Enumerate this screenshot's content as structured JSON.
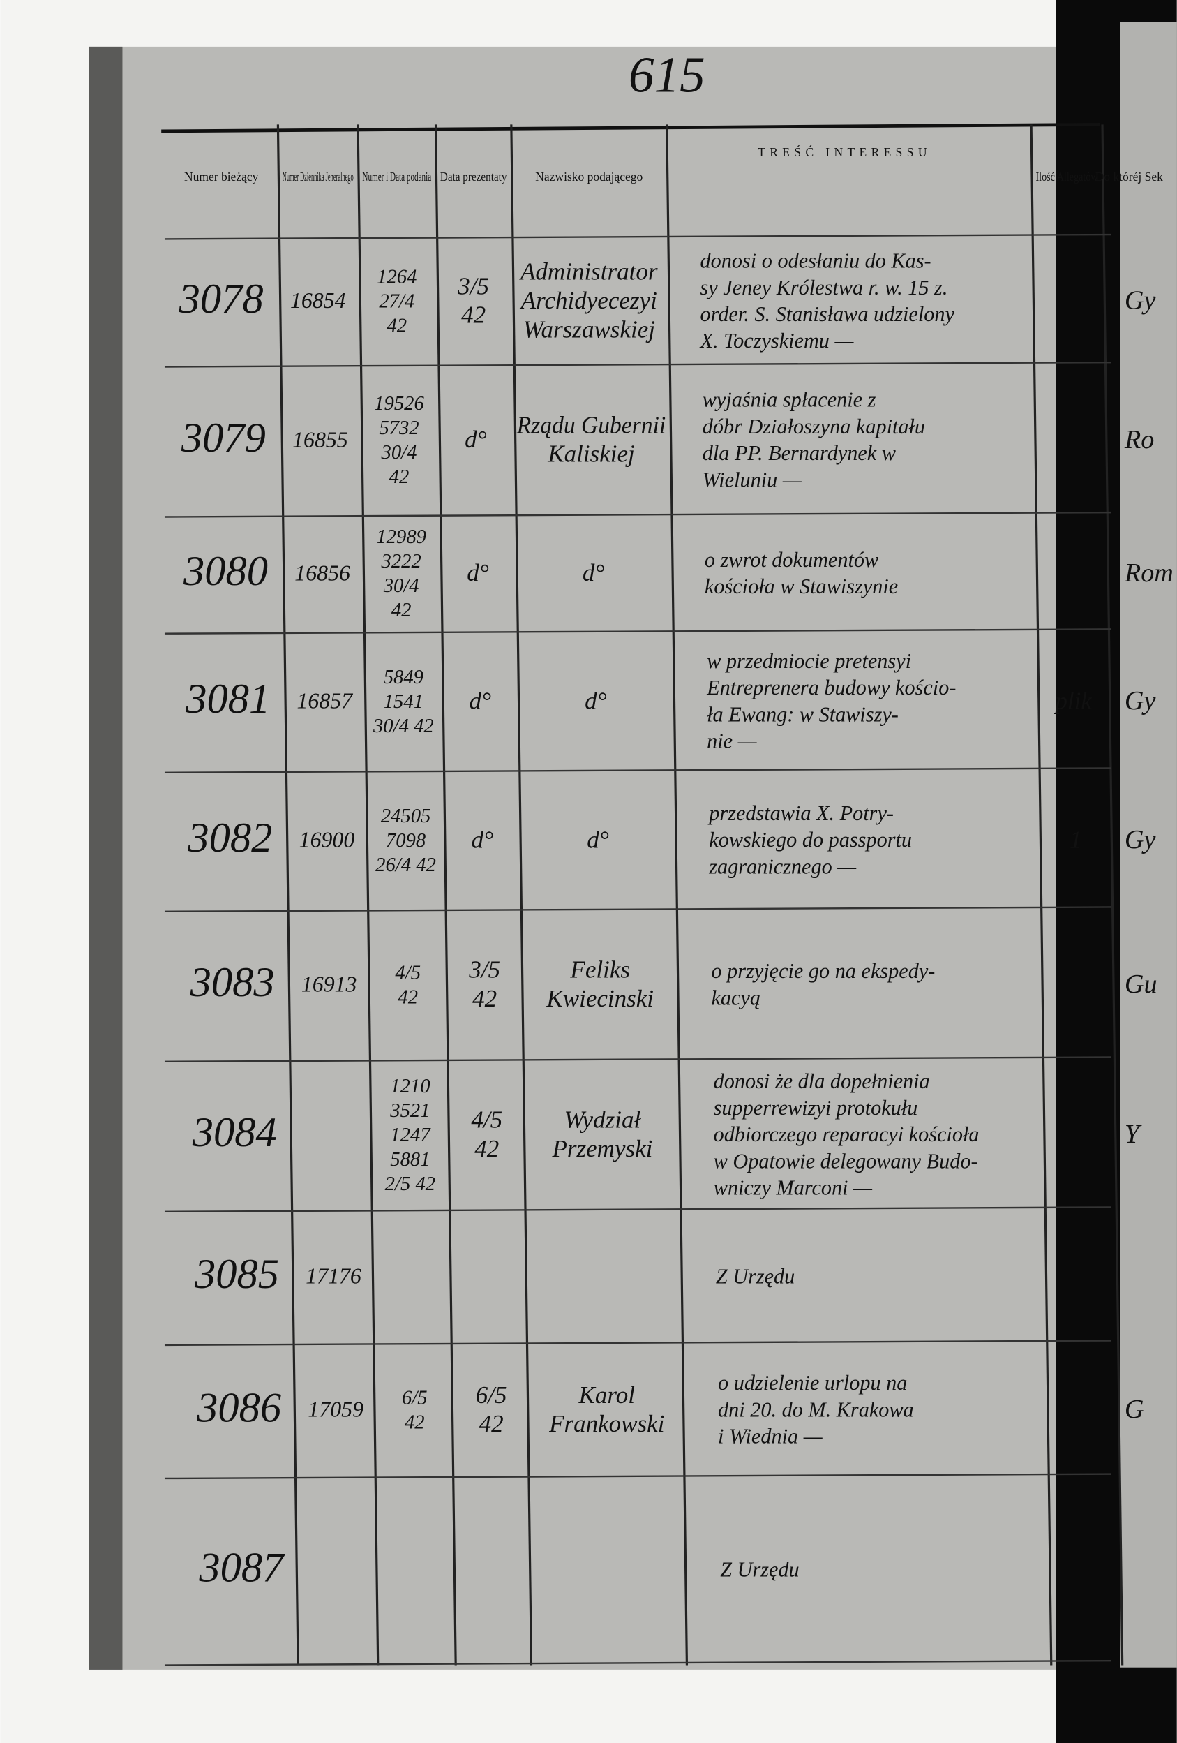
{
  "page_number": "615",
  "header": {
    "columns": [
      "Numer bieżący",
      "Numer Dziennika Jeneralnego",
      "Numer i Data podania",
      "Data prezentaty",
      "Nazwisko podającego",
      "TREŚĆ INTERESSU",
      "Ilość Allegatów",
      "Do któréj Sek"
    ]
  },
  "rows": [
    {
      "number": "3078",
      "journal": "16854",
      "petition": [
        "1264",
        "27/4",
        "42"
      ],
      "presentation": [
        "3/5",
        "42"
      ],
      "petitioner": [
        "Administrator",
        "Archidyecezyi",
        "Warszawskiej"
      ],
      "content": [
        "donosi o odesłaniu do Kas-",
        "sy Jeney Królestwa r. w. 15 z.",
        "order. S. Stanisława udzielony",
        "X. Toczyskiemu —"
      ],
      "section": "Gy"
    },
    {
      "number": "3079",
      "journal": "16855",
      "petition": [
        "19526",
        "5732",
        "30/4",
        "42"
      ],
      "presentation": [
        "d°"
      ],
      "petitioner": [
        "Rządu Gubernii",
        "Kaliskiej"
      ],
      "content": [
        "wyjaśnia spłacenie z",
        "dóbr Działoszyna kapitału",
        "dla PP. Bernardynek w",
        "Wieluniu —"
      ],
      "section": "Ro"
    },
    {
      "number": "3080",
      "journal": "16856",
      "petition": [
        "12989",
        "3222",
        "30/4",
        "42"
      ],
      "presentation": [
        "d°"
      ],
      "petitioner": [
        "d°"
      ],
      "content": [
        "o zwrot dokumentów",
        "kościoła w Stawiszynie"
      ],
      "section": "Rom"
    },
    {
      "number": "3081",
      "journal": "16857",
      "petition": [
        "5849",
        "1541",
        "30/4 42"
      ],
      "presentation": [
        "d°"
      ],
      "petitioner": [
        "d°"
      ],
      "content": [
        "w przedmiocie pretensyi",
        "Entreprenera budowy kościo-",
        "ła Ewang: w Stawiszy-",
        "nie —"
      ],
      "allegata": "plik",
      "section": "Gy"
    },
    {
      "number": "3082",
      "journal": "16900",
      "petition": [
        "24505",
        "7098",
        "26/4 42"
      ],
      "presentation": [
        "d°"
      ],
      "petitioner": [
        "d°"
      ],
      "content": [
        "przedstawia X. Potry-",
        "kowskiego do passportu",
        "zagranicznego —"
      ],
      "allegata": "1",
      "section": "Gy"
    },
    {
      "number": "3083",
      "journal": "16913",
      "petition": [
        "4/5",
        "42"
      ],
      "presentation": [
        "3/5",
        "42"
      ],
      "petitioner": [
        "Feliks",
        "Kwiecinski"
      ],
      "content": [
        "o przyjęcie go na ekspedy-",
        "kacyą"
      ],
      "section": "Gu"
    },
    {
      "number": "3084",
      "petition": [
        "1210",
        "3521",
        "1247",
        "5881",
        "2/5 42"
      ],
      "presentation": [
        "4/5",
        "42"
      ],
      "petitioner": [
        "Wydział",
        "Przemyski"
      ],
      "content": [
        "donosi że dla dopełnienia",
        "supperrewizyi protokułu",
        "odbiorczego reparacyi kościoła",
        "w Opatowie delegowany Budo-",
        "wniczy Marconi —"
      ],
      "section": "Y"
    },
    {
      "number": "3085",
      "journal": "17176",
      "content": [
        "Z Urzędu"
      ]
    },
    {
      "number": "3086",
      "journal": "17059",
      "petition": [
        "6/5",
        "42"
      ],
      "presentation": [
        "6/5",
        "42"
      ],
      "petitioner": [
        "Karol",
        "Frankowski"
      ],
      "content": [
        "o udzielenie urlopu na",
        "dni 20. do M. Krakowa",
        "i Wiednia —"
      ],
      "section": "G"
    },
    {
      "number": "3087",
      "content": [
        "Z Urzędu"
      ]
    }
  ]
}
